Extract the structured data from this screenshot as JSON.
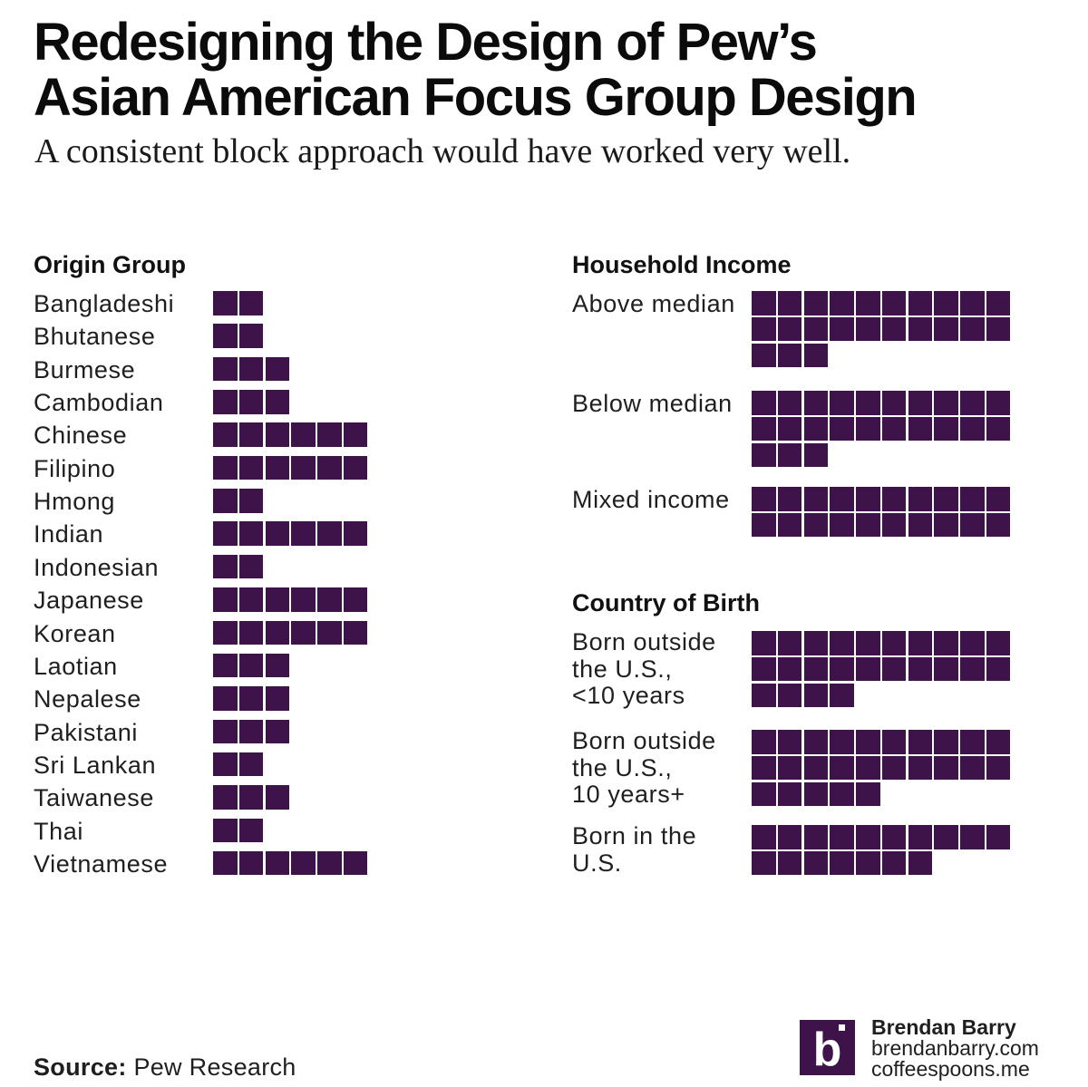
{
  "title_lines": [
    "Redesigning the Design of Pew’s",
    "Asian American Focus Group Design"
  ],
  "subtitle": "A consistent block approach would have worked very well.",
  "colors": {
    "block": "#3e1349",
    "text": "#1f1f1f",
    "background": "#ffffff"
  },
  "chart_data": [
    {
      "type": "block-unit",
      "title": "Origin Group",
      "unit": "one block per focus group",
      "categories": [
        "Bangladeshi",
        "Bhutanese",
        "Burmese",
        "Cambodian",
        "Chinese",
        "Filipino",
        "Hmong",
        "Indian",
        "Indonesian",
        "Japanese",
        "Korean",
        "Laotian",
        "Nepalese",
        "Pakistani",
        "Sri Lankan",
        "Taiwanese",
        "Thai",
        "Vietnamese"
      ],
      "values": [
        2,
        2,
        3,
        3,
        6,
        6,
        2,
        6,
        2,
        6,
        6,
        3,
        3,
        3,
        2,
        3,
        2,
        6
      ]
    },
    {
      "type": "block-unit",
      "title": "Household Income",
      "unit": "one block per focus group",
      "categories": [
        [
          "Above median"
        ],
        [
          "Below median"
        ],
        [
          "Mixed income"
        ]
      ],
      "values": [
        23,
        23,
        20
      ]
    },
    {
      "type": "block-unit",
      "title": "Country of Birth",
      "unit": "one block per focus group",
      "categories": [
        [
          "Born outside",
          "the U.S.,",
          "<10 years"
        ],
        [
          "Born outside",
          "the U.S.,",
          "10 years+"
        ],
        [
          "Born in the",
          "U.S."
        ]
      ],
      "values": [
        24,
        25,
        17
      ]
    }
  ],
  "source": {
    "label": "Source:",
    "text": "Pew Research"
  },
  "credit": {
    "logo_glyph": "b",
    "name": "Brendan Barry",
    "site1": "brendanbarry.com",
    "site2": "coffeespoons.me"
  }
}
